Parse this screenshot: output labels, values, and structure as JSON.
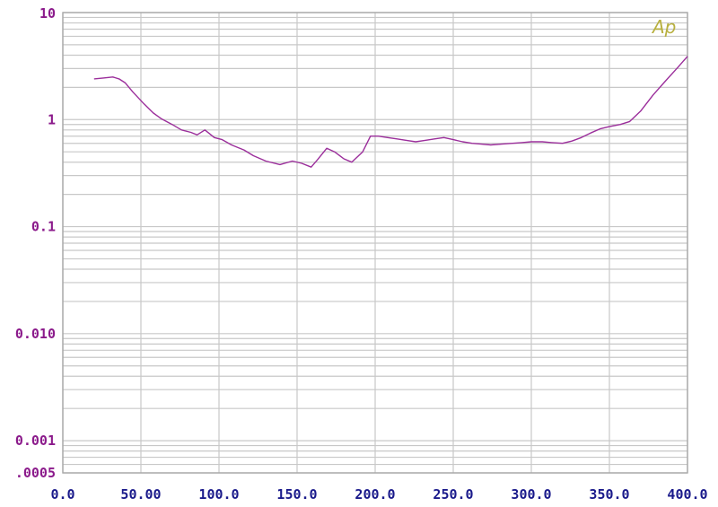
{
  "chart_data": {
    "type": "line",
    "y_scale": "log",
    "ylim": [
      0.0005,
      10
    ],
    "xlim": [
      0,
      400
    ],
    "grid": true,
    "logo_text": "Ap",
    "colors": {
      "line": "#9b2e9b",
      "grid": "#c8c8c8",
      "y_ticks": "#8b1a8b",
      "x_ticks": "#1a1a8b",
      "logo": "#b8b040"
    },
    "y_ticks": [
      {
        "value": 10,
        "label": "10"
      },
      {
        "value": 1,
        "label": "1"
      },
      {
        "value": 0.1,
        "label": "0.1"
      },
      {
        "value": 0.01,
        "label": "0.010"
      },
      {
        "value": 0.001,
        "label": "0.001"
      },
      {
        "value": 0.0005,
        "label": ".0005"
      }
    ],
    "x_ticks": [
      {
        "value": 0,
        "label": "0.0"
      },
      {
        "value": 50,
        "label": "50.00"
      },
      {
        "value": 100,
        "label": "100.0"
      },
      {
        "value": 150,
        "label": "150.0"
      },
      {
        "value": 200,
        "label": "200.0"
      },
      {
        "value": 250,
        "label": "250.0"
      },
      {
        "value": 300,
        "label": "300.0"
      },
      {
        "value": 350,
        "label": "350.0"
      },
      {
        "value": 400,
        "label": "400.0"
      }
    ],
    "series": [
      {
        "x": [
          20,
          26,
          32,
          36,
          40,
          45,
          52,
          58,
          63,
          70,
          76,
          82,
          86,
          91,
          97,
          102,
          108,
          116,
          122,
          130,
          139,
          147,
          153,
          159,
          163,
          169,
          174,
          180,
          185,
          192,
          197,
          202,
          208,
          214,
          220,
          226,
          232,
          238,
          244,
          250,
          256,
          262,
          268,
          274,
          281,
          288,
          294,
          300,
          307,
          313,
          320,
          326,
          332,
          338,
          344,
          350,
          357,
          363,
          370,
          378,
          386,
          394,
          400
        ],
        "y": [
          2.4,
          2.45,
          2.5,
          2.4,
          2.2,
          1.8,
          1.4,
          1.15,
          1.02,
          0.9,
          0.8,
          0.76,
          0.72,
          0.8,
          0.68,
          0.65,
          0.58,
          0.52,
          0.46,
          0.41,
          0.38,
          0.41,
          0.39,
          0.36,
          0.42,
          0.54,
          0.5,
          0.43,
          0.4,
          0.5,
          0.7,
          0.7,
          0.68,
          0.66,
          0.64,
          0.62,
          0.64,
          0.66,
          0.68,
          0.65,
          0.62,
          0.6,
          0.59,
          0.58,
          0.59,
          0.6,
          0.61,
          0.62,
          0.62,
          0.61,
          0.6,
          0.63,
          0.68,
          0.75,
          0.82,
          0.86,
          0.9,
          0.96,
          1.2,
          1.7,
          2.3,
          3.1,
          3.9
        ]
      }
    ]
  }
}
